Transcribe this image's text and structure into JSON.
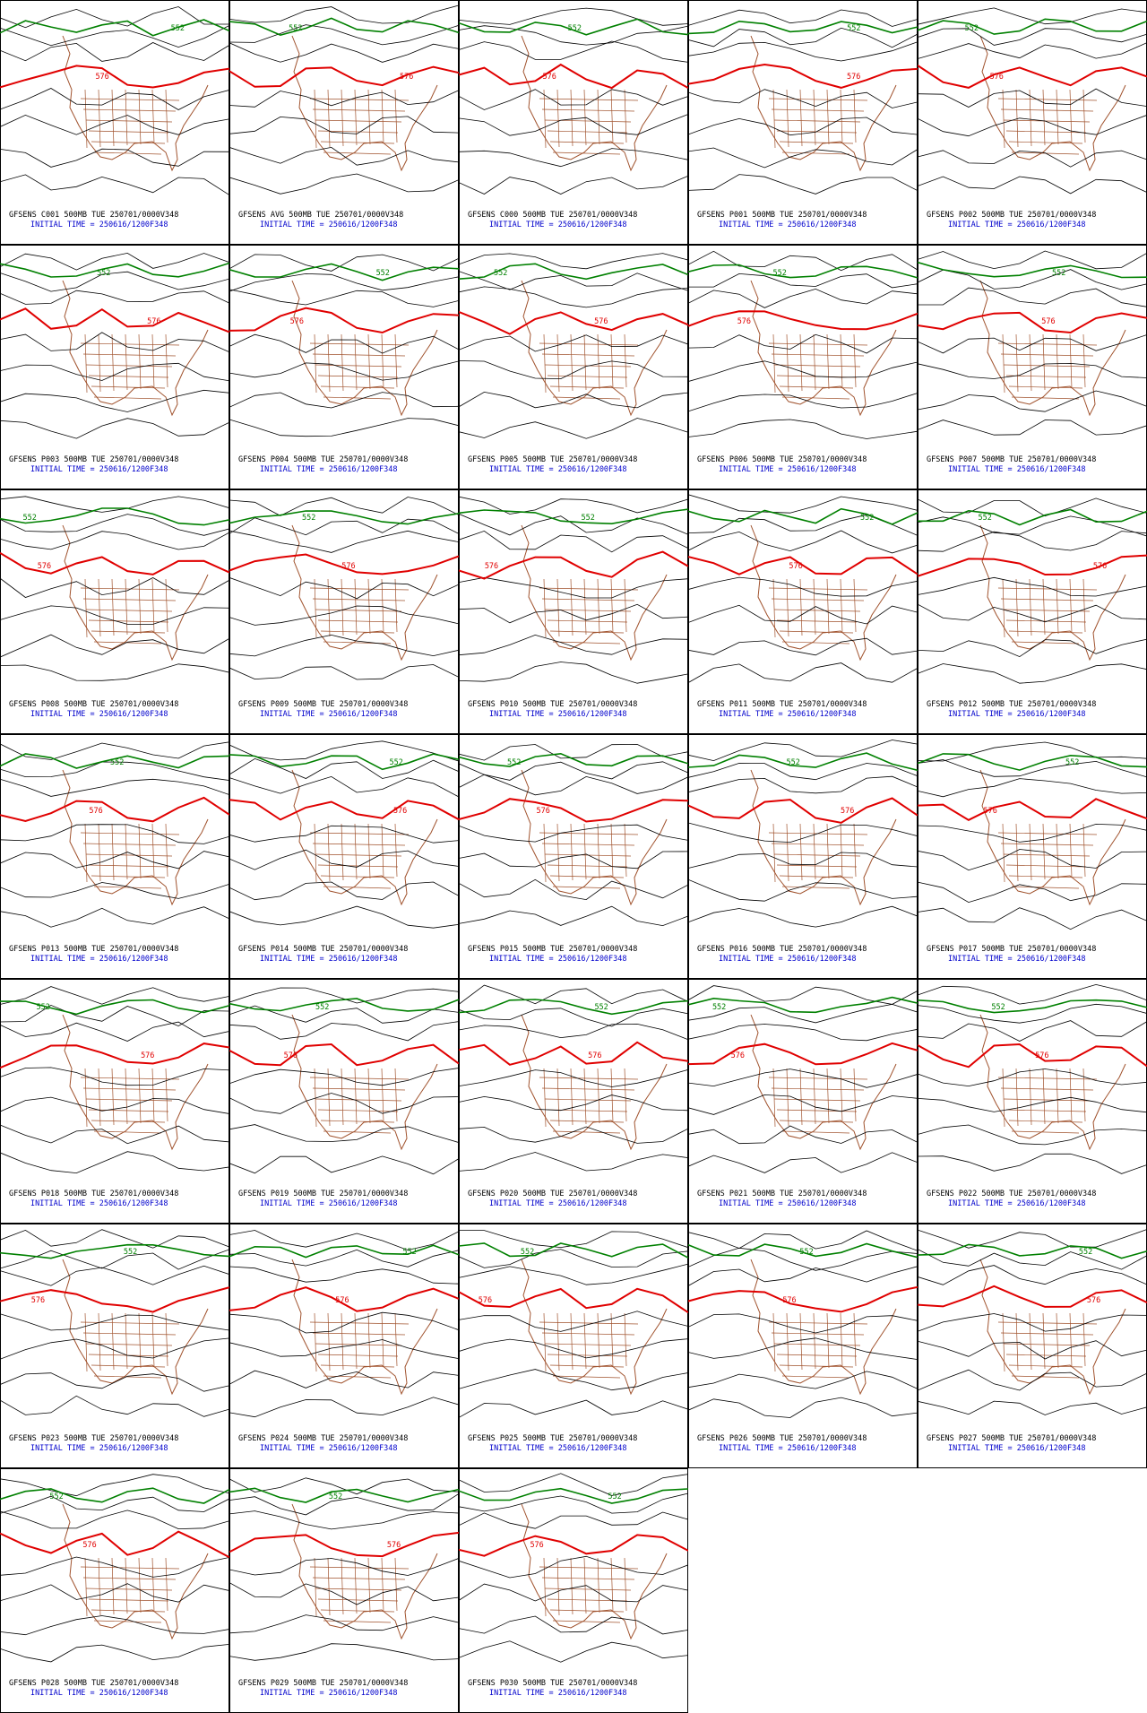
{
  "panels": [
    {
      "caption": "GFSENS C001 500MB TUE 250701/0000V348",
      "init": "INITIAL TIME = 250616/1200F348"
    },
    {
      "caption": "GFSENS AVG 500MB TUE 250701/0000V348",
      "init": "INITIAL TIME = 250616/1200F348"
    },
    {
      "caption": "GFSENS C000 500MB TUE 250701/0000V348",
      "init": "INITIAL TIME = 250616/1200F348"
    },
    {
      "caption": "GFSENS P001 500MB TUE 250701/0000V348",
      "init": "INITIAL TIME = 250616/1200F348"
    },
    {
      "caption": "GFSENS P002 500MB TUE 250701/0000V348",
      "init": "INITIAL TIME = 250616/1200F348"
    },
    {
      "caption": "GFSENS P003 500MB TUE 250701/0000V348",
      "init": "INITIAL TIME = 250616/1200F348"
    },
    {
      "caption": "GFSENS P004 500MB TUE 250701/0000V348",
      "init": "INITIAL TIME = 250616/1200F348"
    },
    {
      "caption": "GFSENS P005 500MB TUE 250701/0000V348",
      "init": "INITIAL TIME = 250616/1200F348"
    },
    {
      "caption": "GFSENS P006 500MB TUE 250701/0000V348",
      "init": "INITIAL TIME = 250616/1200F348"
    },
    {
      "caption": "GFSENS P007 500MB TUE 250701/0000V348",
      "init": "INITIAL TIME = 250616/1200F348"
    },
    {
      "caption": "GFSENS P008 500MB TUE 250701/0000V348",
      "init": "INITIAL TIME = 250616/1200F348"
    },
    {
      "caption": "GFSENS P009 500MB TUE 250701/0000V348",
      "init": "INITIAL TIME = 250616/1200F348"
    },
    {
      "caption": "GFSENS P010 500MB TUE 250701/0000V348",
      "init": "INITIAL TIME = 250616/1200F348"
    },
    {
      "caption": "GFSENS P011 500MB TUE 250701/0000V348",
      "init": "INITIAL TIME = 250616/1200F348"
    },
    {
      "caption": "GFSENS P012 500MB TUE 250701/0000V348",
      "init": "INITIAL TIME = 250616/1200F348"
    },
    {
      "caption": "GFSENS P013 500MB TUE 250701/0000V348",
      "init": "INITIAL TIME = 250616/1200F348"
    },
    {
      "caption": "GFSENS P014 500MB TUE 250701/0000V348",
      "init": "INITIAL TIME = 250616/1200F348"
    },
    {
      "caption": "GFSENS P015 500MB TUE 250701/0000V348",
      "init": "INITIAL TIME = 250616/1200F348"
    },
    {
      "caption": "GFSENS P016 500MB TUE 250701/0000V348",
      "init": "INITIAL TIME = 250616/1200F348"
    },
    {
      "caption": "GFSENS P017 500MB TUE 250701/0000V348",
      "init": "INITIAL TIME = 250616/1200F348"
    },
    {
      "caption": "GFSENS P018 500MB TUE 250701/0000V348",
      "init": "INITIAL TIME = 250616/1200F348"
    },
    {
      "caption": "GFSENS P019 500MB TUE 250701/0000V348",
      "init": "INITIAL TIME = 250616/1200F348"
    },
    {
      "caption": "GFSENS P020 500MB TUE 250701/0000V348",
      "init": "INITIAL TIME = 250616/1200F348"
    },
    {
      "caption": "GFSENS P021 500MB TUE 250701/0000V348",
      "init": "INITIAL TIME = 250616/1200F348"
    },
    {
      "caption": "GFSENS P022 500MB TUE 250701/0000V348",
      "init": "INITIAL TIME = 250616/1200F348"
    },
    {
      "caption": "GFSENS P023 500MB TUE 250701/0000V348",
      "init": "INITIAL TIME = 250616/1200F348"
    },
    {
      "caption": "GFSENS P024 500MB TUE 250701/0000V348",
      "init": "INITIAL TIME = 250616/1200F348"
    },
    {
      "caption": "GFSENS P025 500MB TUE 250701/0000V348",
      "init": "INITIAL TIME = 250616/1200F348"
    },
    {
      "caption": "GFSENS P026 500MB TUE 250701/0000V348",
      "init": "INITIAL TIME = 250616/1200F348"
    },
    {
      "caption": "GFSENS P027 500MB TUE 250701/0000V348",
      "init": "INITIAL TIME = 250616/1200F348"
    },
    {
      "caption": "GFSENS P028 500MB TUE 250701/0000V348",
      "init": "INITIAL TIME = 250616/1200F348"
    },
    {
      "caption": "GFSENS P029 500MB TUE 250701/0000V348",
      "init": "INITIAL TIME = 250616/1200F348"
    },
    {
      "caption": "GFSENS P030 500MB TUE 250701/0000V348",
      "init": "INITIAL TIME = 250616/1200F348"
    }
  ],
  "contour_labels": {
    "low": "552",
    "high": "576"
  }
}
